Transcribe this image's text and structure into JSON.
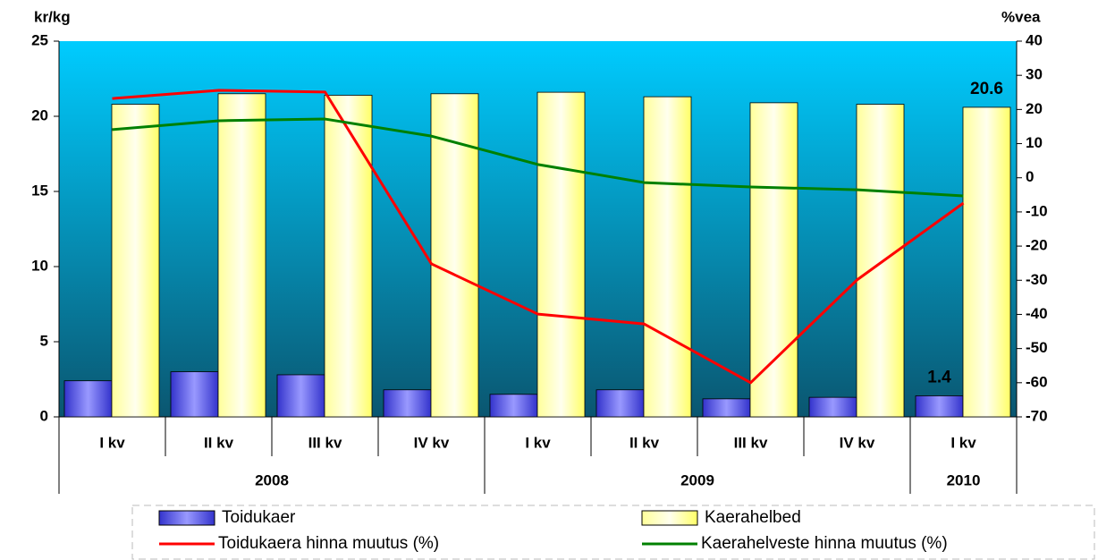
{
  "chart_data": {
    "type": "bar",
    "y_label": "kr/kg",
    "y2_label": "%vea",
    "groups": [
      {
        "label": "2008",
        "categories": [
          "I kv",
          "II kv",
          "III kv",
          "IV kv"
        ]
      },
      {
        "label": "2009",
        "categories": [
          "I kv",
          "II kv",
          "III kv",
          "IV kv"
        ]
      },
      {
        "label": "2010",
        "categories": [
          "I kv"
        ]
      }
    ],
    "series": [
      {
        "name": "Toidukaer",
        "type": "bar",
        "color": "#6666ff",
        "axis": "y",
        "values": [
          2.4,
          3.0,
          2.8,
          1.8,
          1.5,
          1.8,
          1.2,
          1.3,
          1.4
        ],
        "value_labels": [
          null,
          null,
          null,
          null,
          null,
          null,
          null,
          null,
          "1.4"
        ]
      },
      {
        "name": "Kaerahelbed",
        "type": "bar",
        "color": "#ffff99",
        "axis": "y",
        "values": [
          20.8,
          21.5,
          21.4,
          21.5,
          21.6,
          21.3,
          20.9,
          20.8,
          20.6
        ],
        "value_labels": [
          null,
          null,
          null,
          null,
          null,
          null,
          null,
          null,
          "20.6"
        ]
      },
      {
        "name": "Toidukaera hinna muutus (%)",
        "type": "line",
        "color": "#ff0000",
        "axis": "y2",
        "values": [
          23.2,
          25.6,
          25.1,
          -25.2,
          -39.9,
          -42.8,
          -60.0,
          -29.9,
          -7.4
        ]
      },
      {
        "name": "Kaerahelveste hinna muutus (%)",
        "type": "line",
        "color": "#008000",
        "axis": "y2",
        "values": [
          14.1,
          16.7,
          17.2,
          12.2,
          3.9,
          -1.4,
          -2.7,
          -3.5,
          -5.3
        ]
      }
    ],
    "ylim": [
      0,
      25
    ],
    "yticks": [
      0,
      5,
      10,
      15,
      20,
      25
    ],
    "y2lim": [
      -70,
      40
    ],
    "y2ticks": [
      -70,
      -60,
      -50,
      -40,
      -30,
      -20,
      -10,
      0,
      10,
      20,
      30,
      40
    ]
  }
}
